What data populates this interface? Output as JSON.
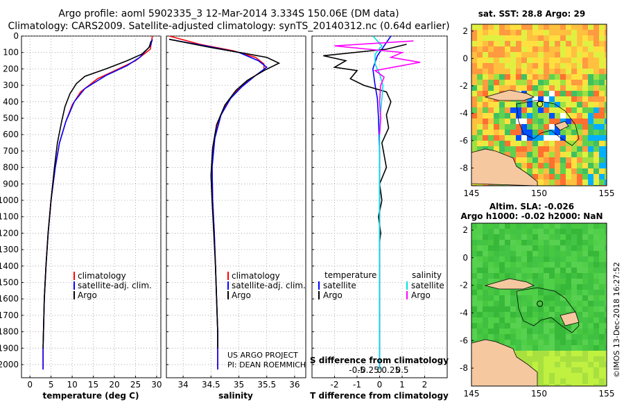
{
  "title_line1": "Argo profile: aoml 5902335_3 12-Mar-2014 3.334S 150.06E (DM data)",
  "title_line2": "Climatology: CARS2009. Satellite-adjusted climatology: synTS_20140312.nc (0.64d earlier)",
  "credit_line1": "US ARGO PROJECT",
  "credit_line2": "PI: DEAN ROEMMICH",
  "imos_stamp": "©IMOS 13-Dec-2018 16:27:52",
  "colors": {
    "climatology": "#ff0000",
    "satellite": "#0000ff",
    "argo": "#000000",
    "sat_salinity": "#00e0e0",
    "argo_salinity": "#ff00ff"
  },
  "chart_data": [
    {
      "type": "line",
      "id": "temperature",
      "xlabel": "temperature (deg C)",
      "ylabel": "",
      "xlim": [
        -2,
        31
      ],
      "ylim": [
        2080,
        0
      ],
      "xticks": [
        0,
        5,
        10,
        15,
        20,
        25,
        30
      ],
      "yticks": [
        0,
        100,
        200,
        300,
        400,
        500,
        600,
        700,
        800,
        900,
        1000,
        1100,
        1200,
        1300,
        1400,
        1500,
        1600,
        1700,
        1800,
        1900,
        2000
      ],
      "legend": [
        "climatology",
        "satellite-adj. clim.",
        "Argo"
      ],
      "series": [
        {
          "name": "climatology",
          "points": [
            [
              29,
              0
            ],
            [
              28.5,
              80
            ],
            [
              25,
              150
            ],
            [
              21,
              200
            ],
            [
              16,
              260
            ],
            [
              12,
              340
            ],
            [
              10,
              420
            ],
            [
              8.5,
              520
            ],
            [
              7,
              650
            ],
            [
              6,
              800
            ],
            [
              5,
              1000
            ],
            [
              4.3,
              1200
            ],
            [
              3.8,
              1400
            ],
            [
              3.4,
              1600
            ],
            [
              3.2,
              1800
            ],
            [
              3.1,
              1900
            ],
            [
              3.1,
              2030
            ]
          ]
        },
        {
          "name": "satellite-adj. clim.",
          "points": [
            [
              29,
              20
            ],
            [
              28.5,
              60
            ],
            [
              26,
              130
            ],
            [
              23,
              180
            ],
            [
              18,
              240
            ],
            [
              13,
              320
            ],
            [
              10.5,
              400
            ],
            [
              8.5,
              520
            ],
            [
              7,
              650
            ],
            [
              6,
              800
            ],
            [
              5,
              1000
            ],
            [
              4.3,
              1200
            ],
            [
              3.8,
              1400
            ],
            [
              3.4,
              1600
            ],
            [
              3.2,
              1800
            ],
            [
              3.1,
              1900
            ],
            [
              3.1,
              2030
            ]
          ]
        },
        {
          "name": "Argo",
          "points": [
            [
              28.7,
              30
            ],
            [
              28.2,
              70
            ],
            [
              26.5,
              110
            ],
            [
              23,
              150
            ],
            [
              18,
              200
            ],
            [
              13,
              245
            ],
            [
              11,
              290
            ],
            [
              9.5,
              350
            ],
            [
              8.3,
              430
            ],
            [
              7.5,
              520
            ],
            [
              6.5,
              650
            ],
            [
              5.8,
              800
            ],
            [
              5,
              1000
            ],
            [
              4.3,
              1200
            ],
            [
              3.8,
              1400
            ],
            [
              3.4,
              1600
            ],
            [
              3.2,
              1800
            ],
            [
              3.1,
              1900
            ]
          ]
        }
      ]
    },
    {
      "type": "line",
      "id": "salinity",
      "xlabel": "salinity",
      "ylabel": "",
      "xlim": [
        33.7,
        36.2
      ],
      "ylim": [
        2080,
        0
      ],
      "xticks": [
        34,
        34.5,
        35,
        35.5,
        36
      ],
      "legend": [
        "climatology",
        "satellite-adj. clim.",
        "Argo"
      ],
      "series": [
        {
          "name": "climatology",
          "points": [
            [
              33.75,
              0
            ],
            [
              34.3,
              50
            ],
            [
              34.9,
              90
            ],
            [
              35.3,
              130
            ],
            [
              35.45,
              170
            ],
            [
              35.45,
              210
            ],
            [
              35.2,
              260
            ],
            [
              35.0,
              320
            ],
            [
              34.8,
              400
            ],
            [
              34.65,
              500
            ],
            [
              34.55,
              650
            ],
            [
              34.52,
              800
            ],
            [
              34.53,
              1000
            ],
            [
              34.56,
              1200
            ],
            [
              34.58,
              1400
            ],
            [
              34.6,
              1600
            ],
            [
              34.62,
              1800
            ],
            [
              34.62,
              2030
            ]
          ]
        },
        {
          "name": "satellite-adj. clim.",
          "points": [
            [
              33.75,
              20
            ],
            [
              34.4,
              60
            ],
            [
              35.0,
              100
            ],
            [
              35.35,
              150
            ],
            [
              35.5,
              190
            ],
            [
              35.3,
              240
            ],
            [
              35.05,
              310
            ],
            [
              34.85,
              380
            ],
            [
              34.68,
              480
            ],
            [
              34.57,
              620
            ],
            [
              34.52,
              800
            ],
            [
              34.53,
              1000
            ],
            [
              34.56,
              1200
            ],
            [
              34.58,
              1400
            ],
            [
              34.6,
              1600
            ],
            [
              34.62,
              1800
            ],
            [
              34.62,
              2030
            ]
          ]
        },
        {
          "name": "Argo",
          "points": [
            [
              33.75,
              20
            ],
            [
              34.5,
              70
            ],
            [
              35.1,
              105
            ],
            [
              35.5,
              130
            ],
            [
              35.72,
              165
            ],
            [
              35.45,
              210
            ],
            [
              35.15,
              270
            ],
            [
              34.95,
              330
            ],
            [
              34.75,
              420
            ],
            [
              34.6,
              540
            ],
            [
              34.53,
              680
            ],
            [
              34.5,
              850
            ],
            [
              34.52,
              1000
            ],
            [
              34.55,
              1200
            ],
            [
              34.58,
              1400
            ],
            [
              34.6,
              1600
            ],
            [
              34.62,
              1800
            ],
            [
              34.62,
              1900
            ]
          ]
        }
      ]
    },
    {
      "type": "line",
      "id": "differences",
      "xlabel": "T difference from climatology",
      "xlabel2": "S difference from climatology",
      "xlim": [
        -3,
        3
      ],
      "ylim": [
        2080,
        0
      ],
      "xticks": [
        -2,
        -1,
        0,
        1,
        2
      ],
      "xtick_labels": [
        "-2",
        "-1",
        "0",
        "1",
        "2"
      ],
      "x2ticks": [
        -1,
        -0.5,
        0,
        0.5,
        1
      ],
      "x2tick_labels": [
        "-0.5",
        "-0.25",
        "0",
        "0.25",
        "0.5"
      ],
      "legend_left_title": "temperature",
      "legend_right_title": "salinity",
      "legend_left": [
        "satellite",
        "Argo"
      ],
      "legend_right": [
        "satellite",
        "Argo"
      ],
      "series": [
        {
          "name": "T satellite",
          "points": [
            [
              0.5,
              0
            ],
            [
              0.2,
              60
            ],
            [
              -0.1,
              120
            ],
            [
              -0.3,
              200
            ],
            [
              -0.2,
              300
            ],
            [
              -0.1,
              380
            ],
            [
              -0.05,
              500
            ],
            [
              0,
              700
            ],
            [
              0,
              1000
            ],
            [
              0,
              1400
            ],
            [
              0,
              1800
            ],
            [
              0,
              2030
            ]
          ]
        },
        {
          "name": "T Argo",
          "points": [
            [
              1.2,
              50
            ],
            [
              0.3,
              80
            ],
            [
              -2.5,
              120
            ],
            [
              -1.5,
              150
            ],
            [
              -2.0,
              190
            ],
            [
              -1.0,
              210
            ],
            [
              -1.3,
              260
            ],
            [
              -0.7,
              300
            ],
            [
              0.3,
              340
            ],
            [
              0.5,
              400
            ],
            [
              0.3,
              480
            ],
            [
              0.4,
              560
            ],
            [
              0.1,
              650
            ],
            [
              0.3,
              800
            ],
            [
              0,
              900
            ],
            [
              0.1,
              1000
            ],
            [
              -0.05,
              1100
            ],
            [
              0.05,
              1200
            ],
            [
              0,
              1250
            ]
          ]
        },
        {
          "name": "S satellite",
          "points": [
            [
              -0.3,
              0
            ],
            [
              0.1,
              60
            ],
            [
              -0.2,
              110
            ],
            [
              -0.2,
              170
            ],
            [
              0,
              230
            ],
            [
              0.15,
              300
            ],
            [
              0.1,
              380
            ],
            [
              0.05,
              460
            ],
            [
              0,
              600
            ],
            [
              0,
              900
            ],
            [
              0,
              1300
            ],
            [
              0,
              1700
            ],
            [
              0,
              2030
            ]
          ]
        },
        {
          "name": "S Argo",
          "points": [
            [
              1.5,
              30
            ],
            [
              -2.0,
              60
            ],
            [
              -0.5,
              80
            ],
            [
              1.0,
              100
            ],
            [
              0.5,
              130
            ],
            [
              1.8,
              160
            ],
            [
              0.8,
              185
            ],
            [
              -0.2,
              210
            ],
            [
              0.2,
              250
            ],
            [
              0.05,
              300
            ],
            [
              0,
              400
            ],
            [
              0.05,
              500
            ],
            [
              0,
              600
            ]
          ]
        }
      ]
    },
    {
      "type": "heatmap",
      "id": "sst_map",
      "title": "sat. SST: 28.8 Argo: 29",
      "xlim": [
        145,
        155
      ],
      "ylim": [
        -9.3,
        2.5
      ],
      "xticks": [
        145,
        150,
        155
      ],
      "yticks": [
        2,
        0,
        -2,
        -4,
        -6,
        -8
      ],
      "argo_position": [
        150.06,
        -3.334
      ]
    },
    {
      "type": "heatmap",
      "id": "sla_map",
      "title": "Altim. SLA: -0.026",
      "subtitle": "Argo h1000: -0.02 h2000: NaN",
      "xlim": [
        145,
        155
      ],
      "ylim": [
        -9.3,
        2.5
      ],
      "xticks": [
        145,
        150,
        155
      ],
      "yticks": [
        2,
        0,
        -2,
        -4,
        -6,
        -8
      ],
      "argo_position": [
        150.06,
        -3.334
      ]
    }
  ]
}
